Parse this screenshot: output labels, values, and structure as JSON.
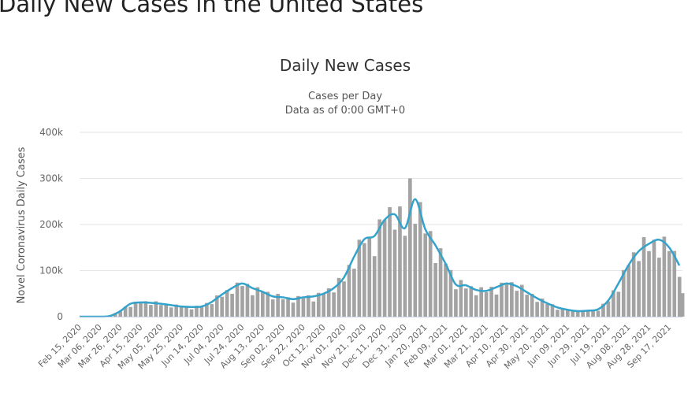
{
  "page": {
    "title": "Daily New Cases in the United States"
  },
  "chart_data": {
    "type": "bar",
    "title": "Daily New Cases",
    "subtitle": [
      "Cases per Day",
      "Data as of 0:00 GMT+0"
    ],
    "xlabel": "",
    "ylabel": "Novel Coronavirus Daily Cases",
    "ylim": [
      0,
      400000
    ],
    "xlim": [
      "2020-02-15",
      "2021-09-30"
    ],
    "y_ticks": [
      "0",
      "100k",
      "200k",
      "300k",
      "400k"
    ],
    "y_tick_values": [
      0,
      100000,
      200000,
      300000,
      400000
    ],
    "x_ticks": [
      "Feb 15, 2020",
      "Mar 06, 2020",
      "Mar 26, 2020",
      "Apr 15, 2020",
      "May 05, 2020",
      "May 25, 2020",
      "Jun 14, 2020",
      "Jul 04, 2020",
      "Jul 24, 2020",
      "Aug 13, 2020",
      "Sep 02, 2020",
      "Sep 22, 2020",
      "Oct 12, 2020",
      "Nov 01, 2020",
      "Nov 21, 2020",
      "Dec 11, 2020",
      "Dec 31, 2020",
      "Jan 20, 2021",
      "Feb 09, 2021",
      "Mar 01, 2021",
      "Mar 21, 2021",
      "Apr 10, 2021",
      "Apr 30, 2021",
      "May 20, 2021",
      "Jun 09, 2021",
      "Jun 29, 2021",
      "Jul 19, 2021",
      "Aug 08, 2021",
      "Aug 28, 2021",
      "Sep 17, 2021"
    ],
    "grid": true,
    "legend": "none",
    "colors": {
      "bars": "#a3a3a3",
      "moving_average": "#33a3cb",
      "grid": "#e6e6e6"
    },
    "series": [
      {
        "kind": "bar",
        "start": "2020-02-15",
        "step_days": 5,
        "values": [
          0,
          0,
          0,
          0,
          50,
          800,
          1200,
          7500,
          11400,
          21600,
          21000,
          32500,
          31000,
          33600,
          25500,
          33400,
          25200,
          27800,
          20000,
          26300,
          20900,
          23200,
          15800,
          23700,
          22000,
          29700,
          27200,
          46000,
          43200,
          57800,
          49600,
          73900,
          66500,
          71300,
          46500,
          63800,
          54000,
          53900,
          37400,
          49500,
          37800,
          42000,
          30400,
          44800,
          39900,
          46400,
          33000,
          51700,
          50000,
          61600,
          52700,
          84000,
          76500,
          112400,
          104000,
          166900,
          159600,
          172800,
          131300,
          211200,
          210000,
          237600,
          188700,
          239200,
          175500,
          300000,
          201600,
          248600,
          180500,
          185800,
          116300,
          148500,
          115000,
          101200,
          59500,
          79400,
          61200,
          66200,
          46400,
          63800,
          53200,
          64800,
          48000,
          73700,
          70000,
          74800,
          56100,
          69000,
          47700,
          49400,
          32000,
          39200,
          27600,
          27000,
          15000,
          18700,
          15000,
          14300,
          10200,
          14400,
          11700,
          15200,
          12800,
          28000,
          33300,
          57200,
          54000,
          101200,
          112000,
          139700,
          120700,
          172500,
          142200,
          167000,
          128000,
          173600,
          142500,
          142600,
          86300
        ],
        "last_day": {
          "date": "2021-09-30",
          "value": 51000
        }
      },
      {
        "kind": "line",
        "start": "2020-02-15",
        "step_days": 10,
        "values": [
          0,
          0,
          50,
          1500,
          12000,
          28000,
          31000,
          30000,
          28000,
          25000,
          22000,
          21000,
          22000,
          32000,
          48000,
          62000,
          72000,
          62000,
          54000,
          44000,
          42000,
          38000,
          42000,
          44000,
          50000,
          62000,
          85000,
          130000,
          168000,
          175000,
          210000,
          222000,
          192000,
          255000,
          190000,
          155000,
          115000,
          70000,
          68000,
          58000,
          56000,
          64000,
          72000,
          66000,
          53000,
          40000,
          29000,
          20000,
          15000,
          12000,
          13000,
          16000,
          35000,
          72000,
          112000,
          142000,
          158000,
          167000,
          150000,
          111000
        ]
      }
    ]
  }
}
